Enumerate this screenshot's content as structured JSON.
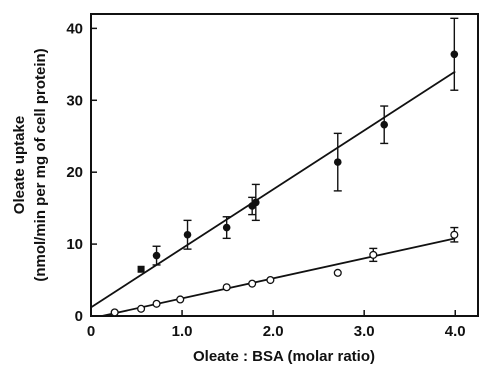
{
  "chart_data": {
    "type": "scatter",
    "xlabel": "Oleate : BSA (molar ratio)",
    "ylabel_line1": "Oleate uptake",
    "ylabel_line2": "(nmol/min per mg of cell protein)",
    "xlim": [
      0,
      4.25
    ],
    "ylim": [
      0,
      42
    ],
    "xticks": [
      0,
      1.0,
      2.0,
      3.0,
      4.0
    ],
    "xtick_labels": [
      "0",
      "1.0",
      "2.0",
      "3.0",
      "4.0"
    ],
    "yticks": [
      0,
      10,
      20,
      30,
      40
    ],
    "ytick_labels": [
      "0",
      "10",
      "20",
      "30",
      "40"
    ],
    "grid": false,
    "series": [
      {
        "marker": "filled-circle",
        "points": [
          {
            "x": 0.55,
            "y": 6.5,
            "err": 0,
            "marker": "filled-square"
          },
          {
            "x": 0.72,
            "y": 8.4,
            "err": 1.3
          },
          {
            "x": 1.06,
            "y": 11.3,
            "err": 2.0
          },
          {
            "x": 1.49,
            "y": 12.3,
            "err": 1.5
          },
          {
            "x": 1.77,
            "y": 15.3,
            "err": 1.2
          },
          {
            "x": 1.81,
            "y": 15.8,
            "err": 2.5
          },
          {
            "x": 2.71,
            "y": 21.4,
            "err": 4.0
          },
          {
            "x": 3.22,
            "y": 26.6,
            "err": 2.6
          },
          {
            "x": 3.99,
            "y": 36.4,
            "err": 5.0
          }
        ],
        "fit_line": {
          "x": [
            0,
            4.0
          ],
          "y": [
            1.2,
            34.0
          ]
        }
      },
      {
        "marker": "open-circle",
        "points": [
          {
            "x": 0.26,
            "y": 0.5,
            "err": 0
          },
          {
            "x": 0.55,
            "y": 1.0,
            "err": 0
          },
          {
            "x": 0.72,
            "y": 1.7,
            "err": 0
          },
          {
            "x": 0.98,
            "y": 2.3,
            "err": 0
          },
          {
            "x": 1.49,
            "y": 4.0,
            "err": 0
          },
          {
            "x": 1.77,
            "y": 4.5,
            "err": 0
          },
          {
            "x": 1.97,
            "y": 5.0,
            "err": 0
          },
          {
            "x": 2.71,
            "y": 6.0,
            "err": 0
          },
          {
            "x": 3.1,
            "y": 8.5,
            "err": 0.9
          },
          {
            "x": 3.99,
            "y": 11.3,
            "err": 1.0
          }
        ],
        "fit_line": {
          "x": [
            0.12,
            4.0
          ],
          "y": [
            0.0,
            10.8
          ]
        }
      }
    ]
  }
}
